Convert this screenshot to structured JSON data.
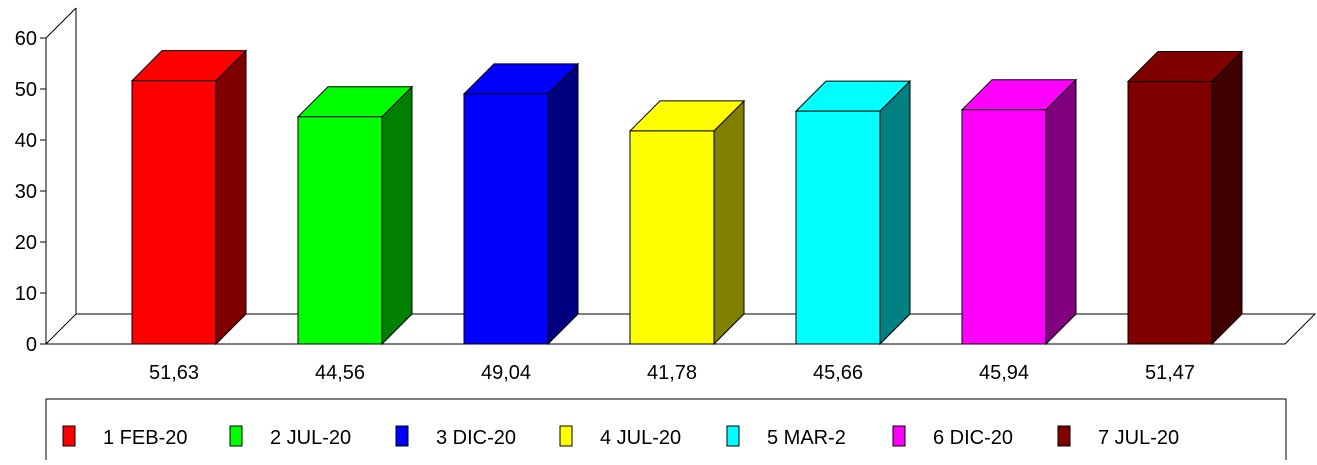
{
  "chart_data": {
    "type": "bar",
    "categories": [
      "51,63",
      "44,56",
      "49,04",
      "41,78",
      "45,66",
      "45,94",
      "51,47"
    ],
    "values": [
      51.63,
      44.56,
      49.04,
      41.78,
      45.66,
      45.94,
      51.47
    ],
    "ylim": [
      0,
      60
    ],
    "yticks": [
      "0",
      "10",
      "20",
      "30",
      "40",
      "50",
      "60"
    ],
    "three_d": true,
    "legend_position": "bottom",
    "series": [
      {
        "name": "1 FEB-20",
        "color": "#ff0000",
        "side_color": "#800000"
      },
      {
        "name": "2 JUL-20",
        "color": "#00ff00",
        "side_color": "#008000"
      },
      {
        "name": "3 DIC-20",
        "color": "#0000ff",
        "side_color": "#000080"
      },
      {
        "name": "4 JUL-20",
        "color": "#ffff00",
        "side_color": "#808000"
      },
      {
        "name": "5 MAR-2",
        "color": "#00ffff",
        "side_color": "#008080"
      },
      {
        "name": "6 DIC-20",
        "color": "#ff00ff",
        "side_color": "#800080"
      },
      {
        "name": "7 JUL-20",
        "color": "#800000",
        "side_color": "#400000"
      }
    ]
  }
}
